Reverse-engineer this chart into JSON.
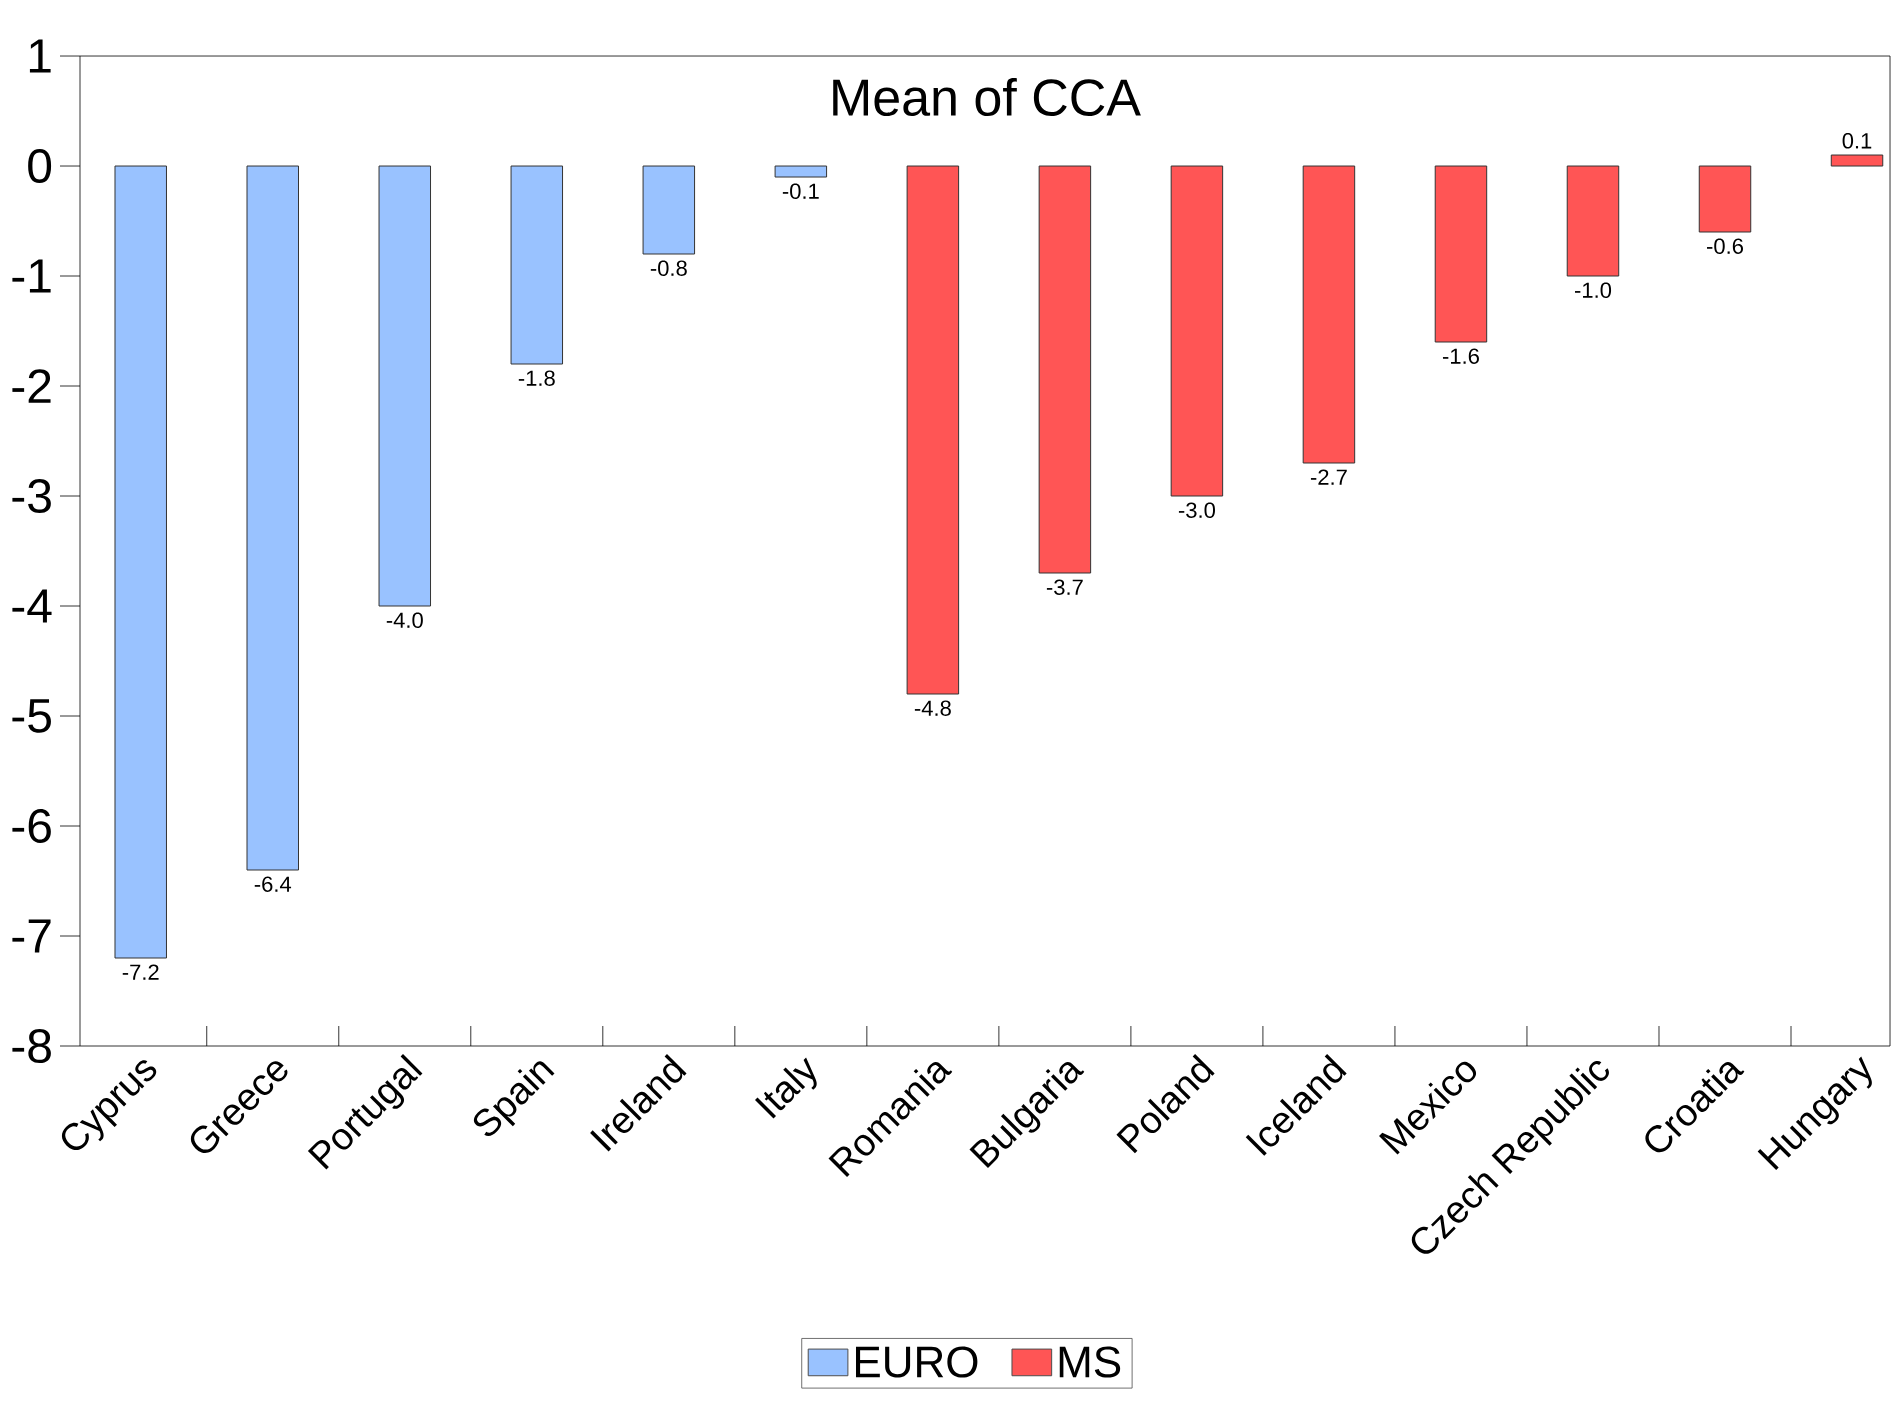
{
  "chart_data": {
    "type": "bar",
    "title": "Mean of CCA",
    "categories": [
      "Cyprus",
      "Greece",
      "Portugal",
      "Spain",
      "Ireland",
      "Italy",
      "Romania",
      "Bulgaria",
      "Poland",
      "Iceland",
      "Mexico",
      "Czech Republic",
      "Croatia",
      "Hungary"
    ],
    "series": [
      {
        "name": "EURO",
        "color": "#99c2ff",
        "values": [
          -7.2,
          -6.4,
          -4.0,
          -1.8,
          -0.8,
          -0.1,
          null,
          null,
          null,
          null,
          null,
          null,
          null,
          null
        ],
        "value_labels": [
          "-7.2",
          "-6.4",
          "-4.0",
          "-1.8",
          "-0.8",
          "-0.1",
          null,
          null,
          null,
          null,
          null,
          null,
          null,
          null
        ]
      },
      {
        "name": "MS",
        "color": "#ff5555",
        "values": [
          null,
          null,
          null,
          null,
          null,
          null,
          -4.8,
          -3.7,
          -3.0,
          -2.7,
          -1.6,
          -1.0,
          -0.6,
          0.1
        ],
        "value_labels": [
          null,
          null,
          null,
          null,
          null,
          null,
          "-4.8",
          "-3.7",
          "-3.0",
          "-2.7",
          "-1.6",
          "-1.0",
          "-0.6",
          "0.1"
        ]
      }
    ],
    "ylim": [
      -8,
      1
    ],
    "yticks": [
      -8,
      -7,
      -6,
      -5,
      -4,
      -3,
      -2,
      -1,
      0,
      1
    ],
    "legend": "bottom",
    "grid": false
  }
}
